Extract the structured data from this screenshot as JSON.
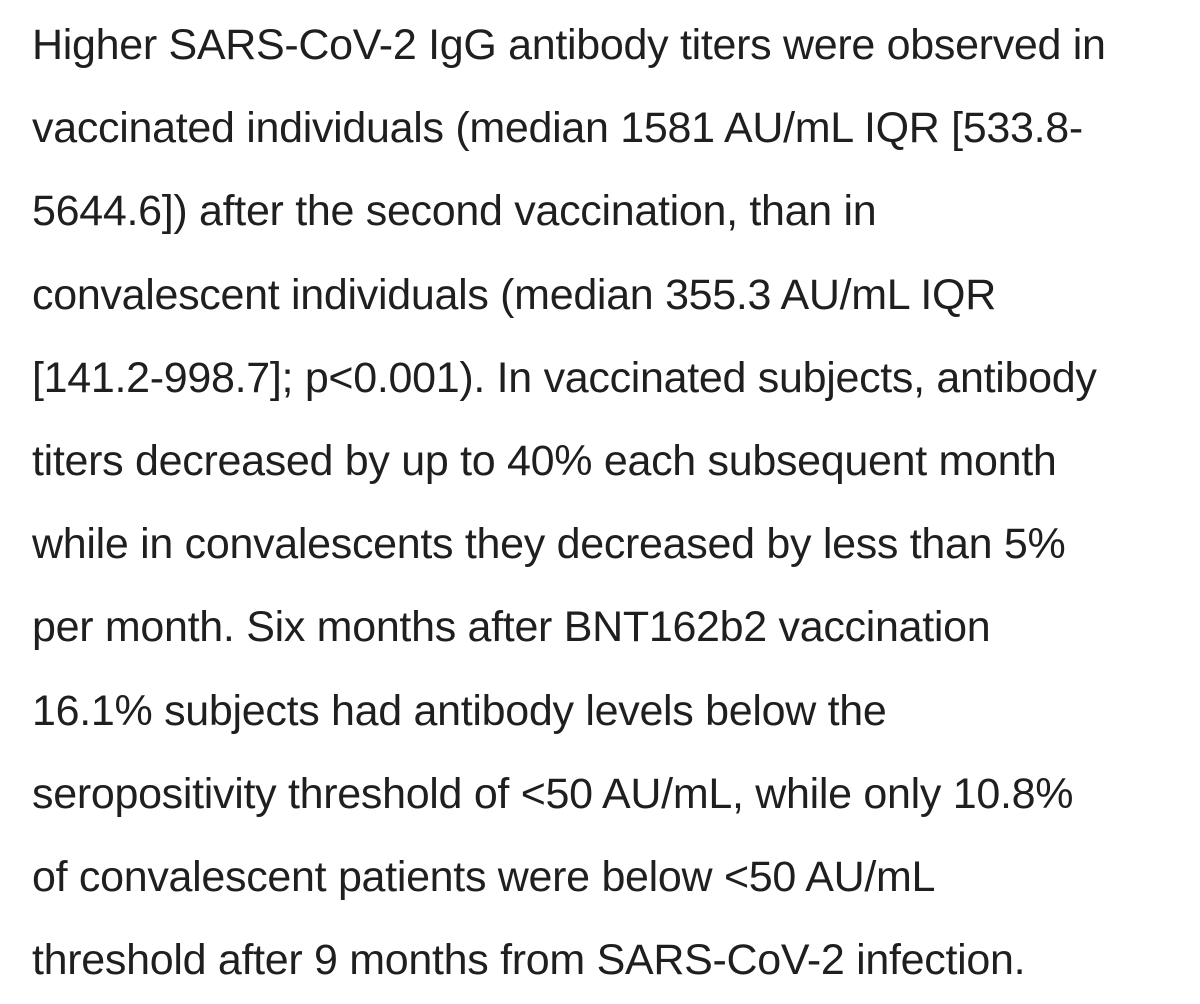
{
  "paragraph": {
    "lines": [
      "Higher SARS-CoV-2 IgG antibody titers were observed in",
      "vaccinated individuals (median 1581 AU/mL IQR [533.8-",
      "5644.6]) after the second vaccination, than in",
      "convalescent individuals (median 355.3 AU/mL IQR",
      "[141.2-998.7]; p<0.001). In vaccinated subjects, antibody",
      "titers decreased by up to 40% each subsequent month",
      "while in convalescents they decreased by less than 5%",
      "per month. Six months after BNT162b2 vaccination",
      "16.1% subjects had antibody levels below the",
      "seropositivity threshold of <50 AU/mL, while only 10.8%",
      "of convalescent patients were below <50 AU/mL",
      "threshold after 9 months from SARS-CoV-2 infection."
    ]
  }
}
